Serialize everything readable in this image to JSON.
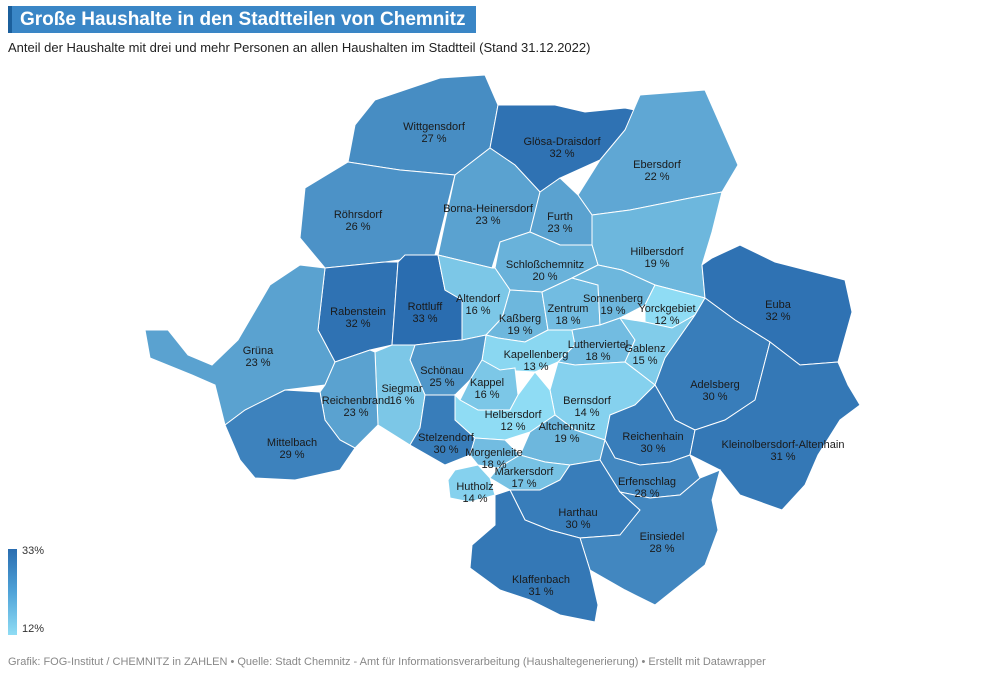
{
  "header": {
    "title": "Große Haushalte in den Stadtteilen von Chemnitz",
    "subtitle": "Anteil der Haushalte mit drei und mehr Personen an allen Haushalten im Stadtteil (Stand 31.12.2022)"
  },
  "legend": {
    "max_label": "33%",
    "min_label": "12%",
    "min_value": 12,
    "max_value": 33,
    "color_low": "#8fdcf4",
    "color_high": "#2a6db0"
  },
  "footer": {
    "credit": "Grafik: FOG-Institut / CHEMNITZ in ZAHLEN • Quelle: Stadt Chemnitz - Amt für Informationsverarbeitung (Haushaltegenerierung) • Erstellt mit Datawrapper"
  },
  "districts": [
    {
      "name": "Wittgensdorf",
      "value": "27 %",
      "pct": 27
    },
    {
      "name": "Glösa-Draisdorf",
      "value": "32 %",
      "pct": 32
    },
    {
      "name": "Ebersdorf",
      "value": "22 %",
      "pct": 22
    },
    {
      "name": "Röhrsdorf",
      "value": "26 %",
      "pct": 26
    },
    {
      "name": "Borna-Heinersdorf",
      "value": "23 %",
      "pct": 23
    },
    {
      "name": "Furth",
      "value": "23 %",
      "pct": 23
    },
    {
      "name": "Hilbersdorf",
      "value": "19 %",
      "pct": 19
    },
    {
      "name": "Schloßchemnitz",
      "value": "20 %",
      "pct": 20
    },
    {
      "name": "Rabenstein",
      "value": "32 %",
      "pct": 32
    },
    {
      "name": "Rottluff",
      "value": "33 %",
      "pct": 33
    },
    {
      "name": "Altendorf",
      "value": "16 %",
      "pct": 16
    },
    {
      "name": "Kaßberg",
      "value": "19 %",
      "pct": 19
    },
    {
      "name": "Zentrum",
      "value": "18 %",
      "pct": 18
    },
    {
      "name": "Sonnenberg",
      "value": "19 %",
      "pct": 19
    },
    {
      "name": "Yorckgebiet",
      "value": "12 %",
      "pct": 12
    },
    {
      "name": "Euba",
      "value": "32 %",
      "pct": 32
    },
    {
      "name": "Grüna",
      "value": "23 %",
      "pct": 23
    },
    {
      "name": "Kapellenberg",
      "value": "13 %",
      "pct": 13
    },
    {
      "name": "Lutherviertel",
      "value": "18 %",
      "pct": 18
    },
    {
      "name": "Gablenz",
      "value": "15 %",
      "pct": 15
    },
    {
      "name": "Schönau",
      "value": "25 %",
      "pct": 25
    },
    {
      "name": "Siegmar",
      "value": "16 %",
      "pct": 16
    },
    {
      "name": "Kappel",
      "value": "16 %",
      "pct": 16
    },
    {
      "name": "Reichenbrand",
      "value": "23 %",
      "pct": 23
    },
    {
      "name": "Adelsberg",
      "value": "30 %",
      "pct": 30
    },
    {
      "name": "Bernsdorf",
      "value": "14 %",
      "pct": 14
    },
    {
      "name": "Helbersdorf",
      "value": "12 %",
      "pct": 12
    },
    {
      "name": "Altchemnitz",
      "value": "19 %",
      "pct": 19
    },
    {
      "name": "Mittelbach",
      "value": "29 %",
      "pct": 29
    },
    {
      "name": "Stelzendorf",
      "value": "30 %",
      "pct": 30
    },
    {
      "name": "Reichenhain",
      "value": "30 %",
      "pct": 30
    },
    {
      "name": "Kleinolbersdorf-Altenhain",
      "value": "31 %",
      "pct": 31
    },
    {
      "name": "Morgenleite",
      "value": "18 %",
      "pct": 18
    },
    {
      "name": "Markersdorf",
      "value": "17 %",
      "pct": 17
    },
    {
      "name": "Erfenschlag",
      "value": "28 %",
      "pct": 28
    },
    {
      "name": "Hutholz",
      "value": "14 %",
      "pct": 14
    },
    {
      "name": "Harthau",
      "value": "30 %",
      "pct": 30
    },
    {
      "name": "Einsiedel",
      "value": "28 %",
      "pct": 28
    },
    {
      "name": "Klaffenbach",
      "value": "31 %",
      "pct": 31
    }
  ]
}
